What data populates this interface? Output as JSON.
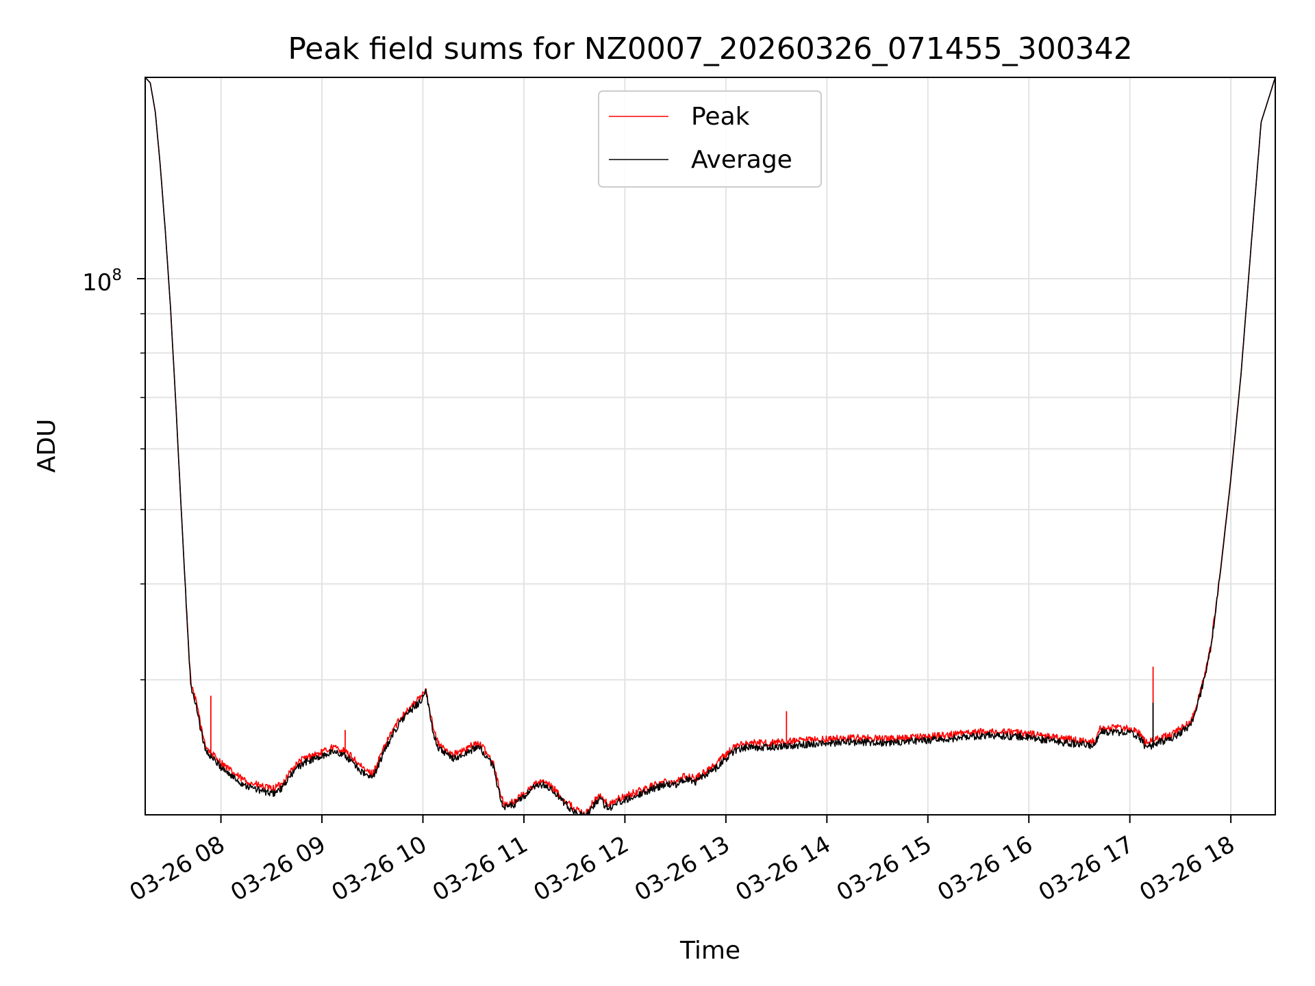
{
  "chart_data": {
    "type": "line",
    "title": "Peak field sums for NZ0007_20260326_071455_300342",
    "xlabel": "Time",
    "ylabel": "ADU",
    "yscale": "log",
    "ylim": [
      20000000,
      183000000
    ],
    "xlim_hours": [
      7.25,
      18.44
    ],
    "x_ticks": [
      {
        "hour": 8,
        "label": "03-26 08"
      },
      {
        "hour": 9,
        "label": "03-26 09"
      },
      {
        "hour": 10,
        "label": "03-26 10"
      },
      {
        "hour": 11,
        "label": "03-26 11"
      },
      {
        "hour": 12,
        "label": "03-26 12"
      },
      {
        "hour": 13,
        "label": "03-26 13"
      },
      {
        "hour": 14,
        "label": "03-26 14"
      },
      {
        "hour": 15,
        "label": "03-26 15"
      },
      {
        "hour": 16,
        "label": "03-26 16"
      },
      {
        "hour": 17,
        "label": "03-26 17"
      },
      {
        "hour": 18,
        "label": "03-26 18"
      }
    ],
    "y_major_tick": {
      "value": 100000000,
      "label_base": "10",
      "label_exp": "8"
    },
    "y_minor_ticks": [
      30000000,
      40000000,
      50000000,
      60000000,
      70000000,
      80000000,
      90000000
    ],
    "grid": true,
    "legend_position": "top-center",
    "series": [
      {
        "name": "Peak",
        "color": "#ff0000",
        "x": [
          7.25,
          7.3,
          7.35,
          7.4,
          7.45,
          7.5,
          7.55,
          7.6,
          7.65,
          7.68,
          7.7,
          7.72,
          7.75,
          7.78,
          7.8,
          7.83,
          7.85,
          7.9,
          8.0,
          8.1,
          8.2,
          8.3,
          8.4,
          8.5,
          8.6,
          8.7,
          8.8,
          8.9,
          9.0,
          9.1,
          9.2,
          9.3,
          9.4,
          9.5,
          9.6,
          9.7,
          9.8,
          9.9,
          9.98,
          10.03,
          10.1,
          10.15,
          10.2,
          10.3,
          10.4,
          10.5,
          10.55,
          10.6,
          10.7,
          10.75,
          10.8,
          10.9,
          11.0,
          11.1,
          11.2,
          11.3,
          11.4,
          11.5,
          11.55,
          11.6,
          11.65,
          11.7,
          11.75,
          11.8,
          11.85,
          11.9,
          12.0,
          12.1,
          12.2,
          12.3,
          12.4,
          12.5,
          12.6,
          12.7,
          12.8,
          12.9,
          13.0,
          13.1,
          13.2,
          13.4,
          13.6,
          13.8,
          14.0,
          14.3,
          14.6,
          15.0,
          15.3,
          15.6,
          15.9,
          16.2,
          16.5,
          16.65,
          16.7,
          17.0,
          17.1,
          17.15,
          17.2,
          17.25,
          17.3,
          17.4,
          17.5,
          17.6,
          17.65,
          17.7,
          17.8,
          17.9,
          18.0,
          18.1,
          18.2,
          18.3,
          18.44
        ],
        "values": [
          183000000,
          180000000,
          165000000,
          140000000,
          115000000,
          92000000,
          70000000,
          52000000,
          39000000,
          33000000,
          30000000,
          29000000,
          28200000,
          27200000,
          26000000,
          25200000,
          24600000,
          24100000,
          23400000,
          22800000,
          22300000,
          22000000,
          21800000,
          21600000,
          21900000,
          22900000,
          23600000,
          23900000,
          24100000,
          24500000,
          24300000,
          23800000,
          23000000,
          22600000,
          24200000,
          25800000,
          27000000,
          27800000,
          28500000,
          29200000,
          26000000,
          24800000,
          24400000,
          24000000,
          24200000,
          24700000,
          24800000,
          24400000,
          23400000,
          21800000,
          20600000,
          20800000,
          21300000,
          21900000,
          22100000,
          21600000,
          20900000,
          20400000,
          20200000,
          20000000,
          20400000,
          20900000,
          21200000,
          20800000,
          20600000,
          20900000,
          21100000,
          21400000,
          21600000,
          21900000,
          22100000,
          22100000,
          22500000,
          22300000,
          22800000,
          23300000,
          24000000,
          24600000,
          24800000,
          24800000,
          24900000,
          25000000,
          25100000,
          25200000,
          25100000,
          25300000,
          25500000,
          25700000,
          25600000,
          25300000,
          25000000,
          24900000,
          26000000,
          25900000,
          25500000,
          24900000,
          24900000,
          25000000,
          25200000,
          25400000,
          25900000,
          26500000,
          27500000,
          29000000,
          33000000,
          42000000,
          55000000,
          75000000,
          110000000,
          160000000,
          183000000
        ],
        "spikes": [
          {
            "x": 7.9,
            "value": 28600000
          },
          {
            "x": 9.23,
            "value": 25800000
          },
          {
            "x": 13.6,
            "value": 27300000
          },
          {
            "x": 17.23,
            "value": 31200000
          }
        ]
      },
      {
        "name": "Average",
        "color": "#000000",
        "x": [
          7.25,
          7.3,
          7.35,
          7.4,
          7.45,
          7.5,
          7.55,
          7.6,
          7.65,
          7.68,
          7.7,
          7.72,
          7.75,
          7.78,
          7.8,
          7.83,
          7.85,
          7.9,
          8.0,
          8.1,
          8.2,
          8.3,
          8.4,
          8.5,
          8.6,
          8.7,
          8.8,
          8.9,
          9.0,
          9.1,
          9.2,
          9.3,
          9.4,
          9.5,
          9.6,
          9.7,
          9.8,
          9.9,
          9.98,
          10.03,
          10.1,
          10.15,
          10.2,
          10.3,
          10.4,
          10.5,
          10.55,
          10.6,
          10.7,
          10.75,
          10.8,
          10.9,
          11.0,
          11.1,
          11.2,
          11.3,
          11.4,
          11.5,
          11.55,
          11.6,
          11.65,
          11.7,
          11.75,
          11.8,
          11.85,
          11.9,
          12.0,
          12.1,
          12.2,
          12.3,
          12.4,
          12.5,
          12.6,
          12.7,
          12.8,
          12.9,
          13.0,
          13.1,
          13.2,
          13.4,
          13.6,
          13.8,
          14.0,
          14.3,
          14.6,
          15.0,
          15.3,
          15.6,
          15.9,
          16.2,
          16.5,
          16.65,
          16.7,
          17.0,
          17.1,
          17.15,
          17.2,
          17.25,
          17.3,
          17.4,
          17.5,
          17.6,
          17.65,
          17.7,
          17.8,
          17.9,
          18.0,
          18.1,
          18.2,
          18.3,
          18.44
        ],
        "values": [
          183000000,
          180000000,
          165000000,
          140000000,
          115000000,
          92000000,
          70000000,
          52000000,
          39000000,
          32800000,
          29800000,
          28700000,
          27900000,
          26900000,
          25700000,
          24900000,
          24300000,
          23800000,
          23100000,
          22500000,
          22000000,
          21700000,
          21500000,
          21300000,
          21600000,
          22600000,
          23300000,
          23600000,
          23800000,
          24200000,
          24000000,
          23500000,
          22700000,
          22300000,
          23900000,
          25500000,
          26700000,
          27500000,
          28200000,
          28900000,
          25700000,
          24500000,
          24100000,
          23700000,
          23900000,
          24400000,
          24500000,
          24100000,
          23100000,
          21500000,
          20400000,
          20600000,
          21100000,
          21700000,
          21900000,
          21400000,
          20700000,
          20200000,
          20000000,
          19900000,
          20200000,
          20700000,
          21000000,
          20600000,
          20400000,
          20700000,
          20900000,
          21200000,
          21400000,
          21700000,
          21900000,
          21900000,
          22300000,
          22100000,
          22600000,
          23000000,
          23700000,
          24300000,
          24500000,
          24500000,
          24600000,
          24700000,
          24800000,
          24900000,
          24800000,
          25000000,
          25200000,
          25400000,
          25300000,
          25000000,
          24700000,
          24600000,
          25700000,
          25600000,
          25200000,
          24600000,
          24600000,
          24700000,
          24900000,
          25100000,
          25600000,
          26200000,
          27200000,
          28800000,
          32800000,
          41800000,
          54800000,
          74800000,
          110000000,
          160000000,
          183000000
        ],
        "spikes": [
          {
            "x": 17.23,
            "value": 28000000
          }
        ]
      }
    ]
  }
}
